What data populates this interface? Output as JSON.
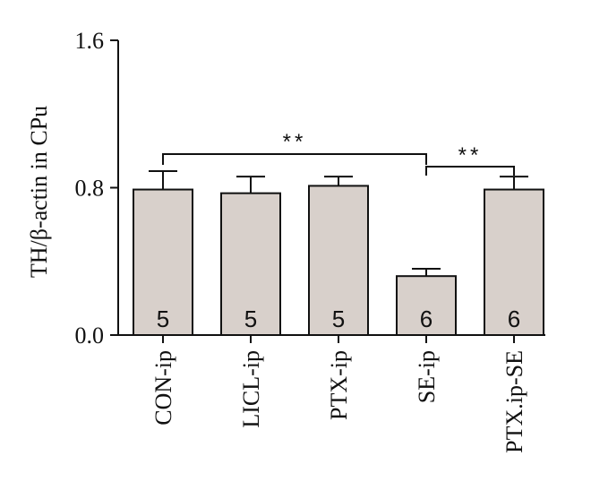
{
  "chart_data": {
    "type": "bar",
    "title": "",
    "xlabel": "",
    "ylabel": "TH/β-actin in CPu",
    "ylim": [
      0,
      1.6
    ],
    "yticks": [
      "0.0",
      "0.8",
      "1.6"
    ],
    "categories": [
      "CON-ip",
      "LICL-ip",
      "PTX-ip",
      "SE-ip",
      "PTX.ip-SE"
    ],
    "values": [
      0.79,
      0.77,
      0.81,
      0.32,
      0.79
    ],
    "errors": [
      0.1,
      0.09,
      0.05,
      0.04,
      0.07
    ],
    "n_labels": [
      "5",
      "5",
      "5",
      "6",
      "6"
    ],
    "bar_color": "#d8d0cb",
    "significance": [
      {
        "from": "CON-ip",
        "to": "SE-ip",
        "label": "**"
      },
      {
        "from": "SE-ip",
        "to": "PTX.ip-SE",
        "label": "**"
      }
    ],
    "grid": false,
    "legend": "none"
  }
}
